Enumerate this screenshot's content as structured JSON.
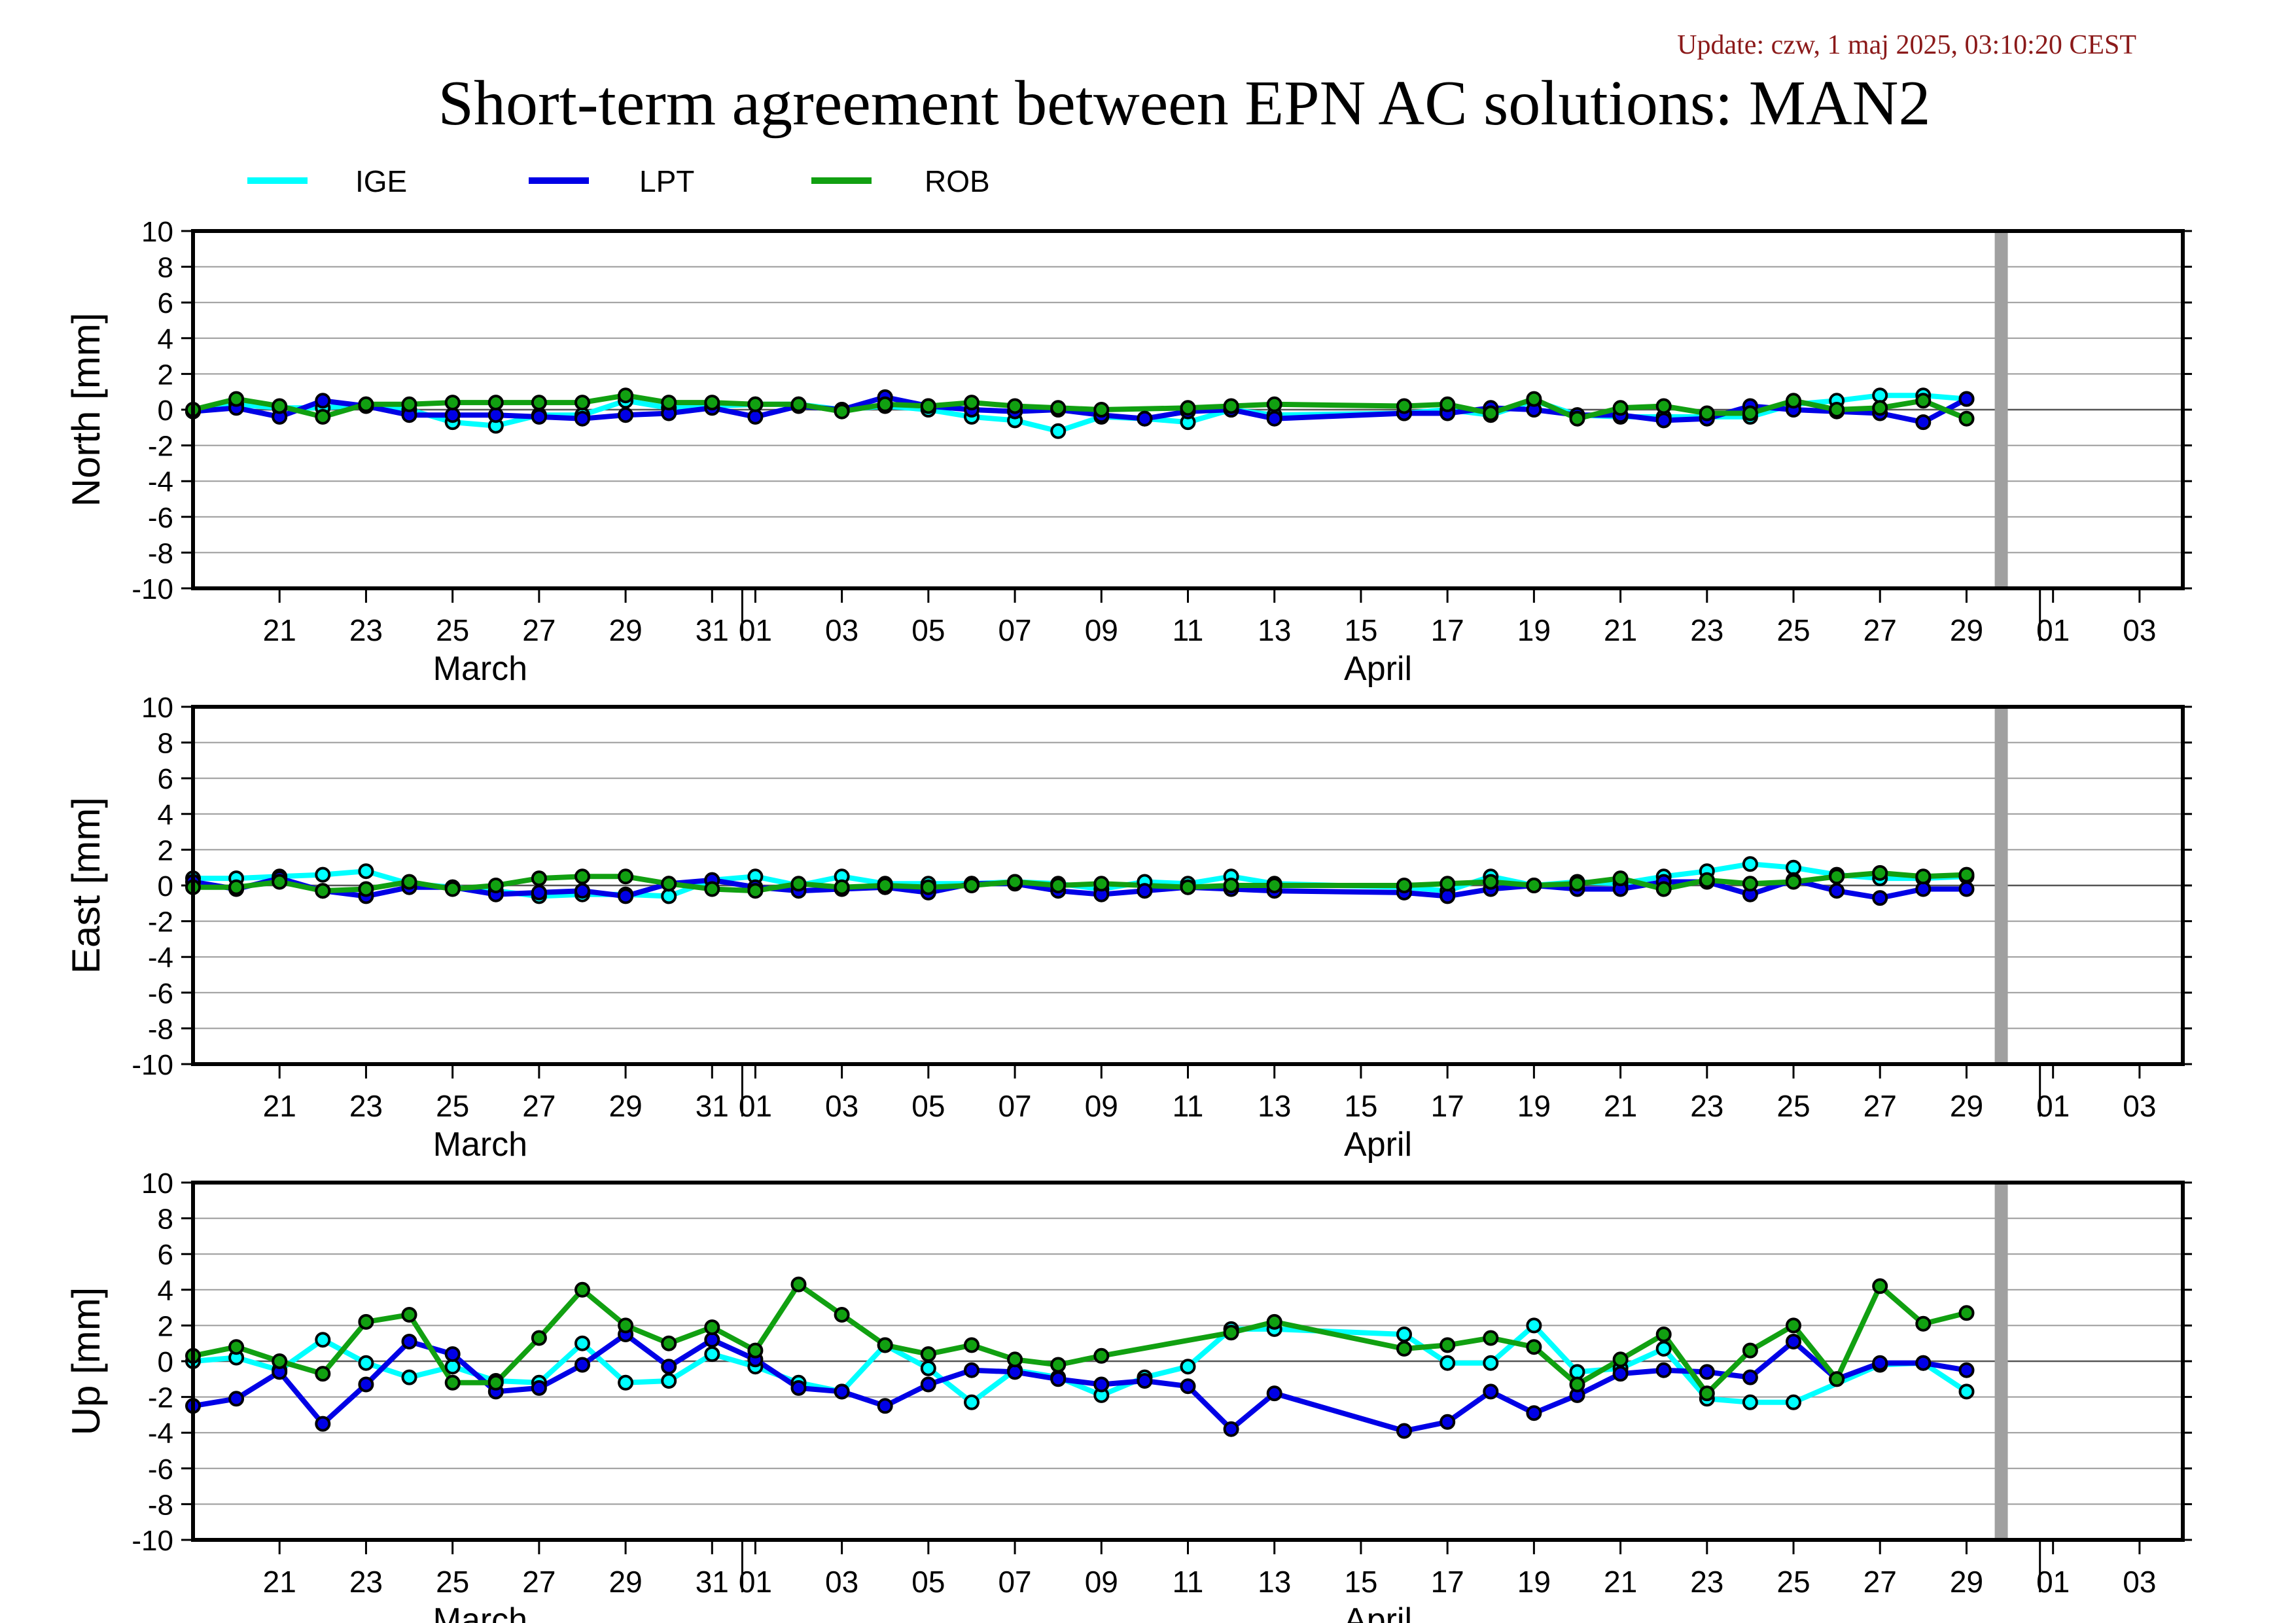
{
  "update": "Update: czw, 1 maj 2025, 03:10:20 CEST",
  "title": "Short-term agreement between EPN AC solutions: MAN2",
  "colors": {
    "IGE": "#00ffff",
    "LPT": "#0000e6",
    "ROB": "#11a011",
    "cursor": "#a0a0a0"
  },
  "chart_data": [
    {
      "type": "line",
      "ylabel": "North [mm]",
      "ylim": [
        -10,
        10
      ],
      "yticks": [
        10,
        8,
        6,
        4,
        2,
        0,
        -2,
        -4,
        -6,
        -8,
        -10
      ],
      "grid": true,
      "xlim": [
        "2025-03-19",
        "2025-05-04"
      ],
      "xticks": [
        "21",
        "23",
        "25",
        "27",
        "29",
        "31",
        "01",
        "03",
        "05",
        "07",
        "09",
        "11",
        "13",
        "15",
        "17",
        "19",
        "21",
        "23",
        "25",
        "27",
        "29",
        "01",
        "03"
      ],
      "month_labels": [
        "March",
        "April"
      ],
      "legend": "top-left",
      "x": [
        "03-19",
        "03-20",
        "03-21",
        "03-22",
        "03-23",
        "03-24",
        "03-25",
        "03-26",
        "03-27",
        "03-28",
        "03-29",
        "03-30",
        "03-31",
        "04-01",
        "04-02",
        "04-03",
        "04-04",
        "04-05",
        "04-06",
        "04-07",
        "04-08",
        "04-09",
        "04-10",
        "04-11",
        "04-12",
        "04-13",
        "04-14",
        "04-16",
        "04-17",
        "04-18",
        "04-19",
        "04-20",
        "04-21",
        "04-22",
        "04-23",
        "04-24",
        "04-25",
        "04-26",
        "04-27",
        "04-28",
        "04-29"
      ],
      "series": [
        {
          "name": "IGE",
          "values": [
            -0.1,
            0.3,
            0.1,
            0.1,
            0.3,
            0.0,
            -0.7,
            -0.9,
            -0.3,
            -0.3,
            0.5,
            0.1,
            0.2,
            0.3,
            0.3,
            0.0,
            0.2,
            0.0,
            -0.4,
            -0.6,
            -1.2,
            -0.4,
            -0.5,
            -0.7,
            0.0,
            -0.3,
            null,
            -0.2,
            0.0,
            -0.3,
            0.5,
            -0.3,
            -0.4,
            -0.4,
            -0.4,
            -0.4,
            0.3,
            0.5,
            0.8,
            0.8,
            0.6
          ]
        },
        {
          "name": "LPT",
          "values": [
            -0.1,
            0.1,
            -0.4,
            0.5,
            0.2,
            -0.3,
            -0.3,
            -0.3,
            -0.4,
            -0.5,
            -0.3,
            -0.2,
            0.1,
            -0.4,
            0.2,
            0.0,
            0.7,
            0.2,
            0.0,
            -0.1,
            0.0,
            -0.3,
            -0.5,
            -0.1,
            0.0,
            -0.5,
            null,
            -0.2,
            -0.2,
            0.1,
            0.0,
            -0.3,
            -0.3,
            -0.6,
            -0.5,
            0.2,
            0.0,
            -0.1,
            -0.2,
            -0.7,
            0.6
          ]
        },
        {
          "name": "ROB",
          "values": [
            0.0,
            0.6,
            0.2,
            -0.4,
            0.3,
            0.3,
            0.4,
            0.4,
            0.4,
            0.4,
            0.8,
            0.4,
            0.4,
            0.3,
            0.3,
            -0.1,
            0.3,
            0.2,
            0.4,
            0.2,
            0.1,
            0.0,
            null,
            0.1,
            0.2,
            0.3,
            null,
            0.2,
            0.3,
            -0.2,
            0.6,
            -0.5,
            0.1,
            0.2,
            -0.2,
            -0.2,
            0.5,
            0.0,
            0.1,
            0.5,
            -0.5
          ]
        }
      ]
    },
    {
      "type": "line",
      "ylabel": "East [mm]",
      "ylim": [
        -10,
        10
      ],
      "yticks": [
        10,
        8,
        6,
        4,
        2,
        0,
        -2,
        -4,
        -6,
        -8,
        -10
      ],
      "grid": true,
      "xlim": [
        "2025-03-19",
        "2025-05-04"
      ],
      "xticks": [
        "21",
        "23",
        "25",
        "27",
        "29",
        "31",
        "01",
        "03",
        "05",
        "07",
        "09",
        "11",
        "13",
        "15",
        "17",
        "19",
        "21",
        "23",
        "25",
        "27",
        "29",
        "01",
        "03"
      ],
      "month_labels": [
        "March",
        "April"
      ],
      "x": [
        "03-19",
        "03-20",
        "03-21",
        "03-22",
        "03-23",
        "03-24",
        "03-25",
        "03-26",
        "03-27",
        "03-28",
        "03-29",
        "03-30",
        "03-31",
        "04-01",
        "04-02",
        "04-03",
        "04-04",
        "04-05",
        "04-06",
        "04-07",
        "04-08",
        "04-09",
        "04-10",
        "04-11",
        "04-12",
        "04-13",
        "04-14",
        "04-16",
        "04-17",
        "04-18",
        "04-19",
        "04-20",
        "04-21",
        "04-22",
        "04-23",
        "04-24",
        "04-25",
        "04-26",
        "04-27",
        "04-28",
        "04-29"
      ],
      "series": [
        {
          "name": "IGE",
          "values": [
            0.4,
            0.4,
            0.5,
            0.6,
            0.8,
            0.1,
            -0.1,
            -0.3,
            -0.6,
            -0.5,
            -0.5,
            -0.6,
            0.3,
            0.5,
            0.0,
            0.5,
            0.1,
            0.1,
            0.1,
            0.2,
            0.1,
            -0.2,
            0.2,
            0.1,
            0.5,
            0.1,
            null,
            -0.1,
            -0.3,
            0.5,
            0.0,
            0.2,
            0.1,
            0.5,
            0.8,
            1.2,
            1.0,
            0.6,
            0.4,
            0.4,
            0.5
          ]
        },
        {
          "name": "LPT",
          "values": [
            0.2,
            -0.2,
            0.4,
            -0.3,
            -0.6,
            -0.1,
            -0.1,
            -0.5,
            -0.4,
            -0.3,
            -0.6,
            0.1,
            0.3,
            -0.1,
            -0.3,
            -0.2,
            -0.1,
            -0.4,
            0.1,
            0.1,
            -0.3,
            -0.5,
            -0.3,
            -0.1,
            -0.2,
            -0.3,
            null,
            -0.4,
            -0.6,
            -0.2,
            0.0,
            -0.2,
            -0.2,
            0.2,
            0.2,
            -0.5,
            0.3,
            -0.3,
            -0.7,
            -0.2,
            -0.2
          ]
        },
        {
          "name": "ROB",
          "values": [
            -0.1,
            -0.1,
            0.2,
            -0.3,
            -0.2,
            0.2,
            -0.2,
            0.0,
            0.4,
            0.5,
            0.5,
            0.1,
            -0.2,
            -0.3,
            0.1,
            -0.1,
            0.0,
            -0.1,
            0.0,
            0.2,
            0.0,
            0.1,
            null,
            -0.1,
            0.0,
            0.0,
            null,
            0.0,
            0.1,
            0.2,
            0.0,
            0.1,
            0.4,
            -0.2,
            0.3,
            0.1,
            0.2,
            0.5,
            0.7,
            0.5,
            0.6
          ]
        }
      ]
    },
    {
      "type": "line",
      "ylabel": "Up [mm]",
      "ylim": [
        -10,
        10
      ],
      "yticks": [
        10,
        8,
        6,
        4,
        2,
        0,
        -2,
        -4,
        -6,
        -8,
        -10
      ],
      "grid": true,
      "xlim": [
        "2025-03-19",
        "2025-05-04"
      ],
      "xticks": [
        "21",
        "23",
        "25",
        "27",
        "29",
        "31",
        "01",
        "03",
        "05",
        "07",
        "09",
        "11",
        "13",
        "15",
        "17",
        "19",
        "21",
        "23",
        "25",
        "27",
        "29",
        "01",
        "03"
      ],
      "month_labels": [
        "March",
        "April"
      ],
      "x": [
        "03-19",
        "03-20",
        "03-21",
        "03-22",
        "03-23",
        "03-24",
        "03-25",
        "03-26",
        "03-27",
        "03-28",
        "03-29",
        "03-30",
        "03-31",
        "04-01",
        "04-02",
        "04-03",
        "04-04",
        "04-05",
        "04-06",
        "04-07",
        "04-08",
        "04-09",
        "04-10",
        "04-11",
        "04-12",
        "04-13",
        "04-14",
        "04-16",
        "04-17",
        "04-18",
        "04-19",
        "04-20",
        "04-21",
        "04-22",
        "04-23",
        "04-24",
        "04-25",
        "04-26",
        "04-27",
        "04-28",
        "04-29"
      ],
      "series": [
        {
          "name": "IGE",
          "values": [
            0.0,
            0.2,
            -0.5,
            1.2,
            -0.1,
            -0.9,
            -0.3,
            -1.1,
            -1.2,
            1.0,
            -1.2,
            -1.1,
            0.4,
            -0.3,
            -1.2,
            -1.7,
            0.9,
            -0.4,
            -2.3,
            -0.5,
            -0.9,
            -1.9,
            -0.9,
            -0.3,
            1.8,
            1.8,
            null,
            1.5,
            -0.1,
            -0.1,
            2.0,
            -0.6,
            -0.4,
            0.7,
            -2.1,
            -2.3,
            -2.3,
            null,
            -0.2,
            -0.1,
            -1.7
          ]
        },
        {
          "name": "LPT",
          "values": [
            -2.5,
            -2.1,
            -0.6,
            -3.5,
            -1.3,
            1.1,
            0.4,
            -1.7,
            -1.5,
            -0.2,
            1.5,
            -0.3,
            1.2,
            0.1,
            -1.5,
            -1.7,
            -2.5,
            -1.3,
            -0.5,
            -0.6,
            -1.0,
            -1.3,
            -1.1,
            -1.4,
            -3.8,
            -1.8,
            null,
            -3.9,
            -3.4,
            -1.7,
            -2.9,
            -1.9,
            -0.7,
            -0.5,
            -0.6,
            -0.9,
            1.1,
            -1.0,
            -0.1,
            -0.1,
            -0.5
          ]
        },
        {
          "name": "ROB",
          "values": [
            0.3,
            0.8,
            0.0,
            -0.7,
            2.2,
            2.6,
            -1.2,
            -1.2,
            1.3,
            4.0,
            2.0,
            1.0,
            1.9,
            0.6,
            4.3,
            2.6,
            0.9,
            0.4,
            0.9,
            0.1,
            -0.2,
            0.3,
            null,
            null,
            1.6,
            2.2,
            null,
            0.7,
            0.9,
            1.3,
            0.8,
            -1.3,
            0.1,
            1.5,
            -1.8,
            0.6,
            2.0,
            -1.0,
            4.2,
            2.1,
            2.7
          ]
        }
      ]
    }
  ]
}
